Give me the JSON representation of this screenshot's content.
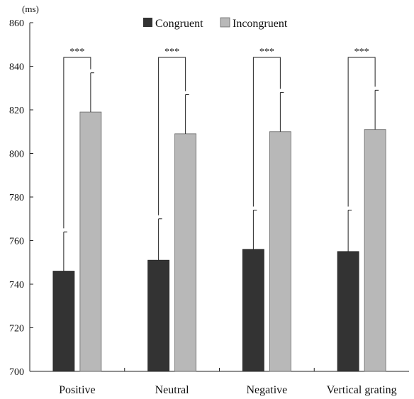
{
  "chart_data": {
    "type": "bar",
    "unit_label": "(ms)",
    "categories": [
      "Positive",
      "Neutral",
      "Negative",
      "Vertical grating"
    ],
    "series": [
      {
        "name": "Congruent",
        "color": "#333333",
        "values": [
          746,
          751,
          756,
          755
        ],
        "error": [
          18,
          19,
          18,
          19
        ]
      },
      {
        "name": "Incongruent",
        "color": "#b8b8b8",
        "values": [
          819,
          809,
          810,
          811
        ],
        "error": [
          18,
          18,
          18,
          18
        ]
      }
    ],
    "ylim": [
      700,
      860
    ],
    "yticks": [
      700,
      720,
      740,
      760,
      780,
      800,
      820,
      840,
      860
    ],
    "significance": [
      "***",
      "***",
      "***",
      "***"
    ],
    "legend_position": "top-center",
    "grid": false
  }
}
